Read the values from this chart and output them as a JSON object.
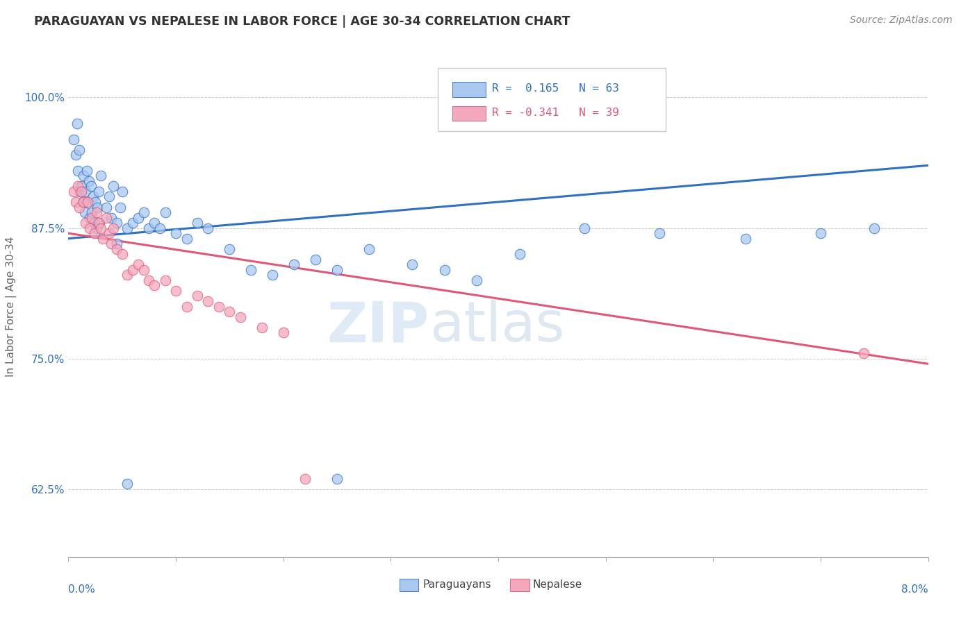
{
  "title": "PARAGUAYAN VS NEPALESE IN LABOR FORCE | AGE 30-34 CORRELATION CHART",
  "source_text": "Source: ZipAtlas.com",
  "ylabel": "In Labor Force | Age 30-34",
  "yticks": [
    62.5,
    75.0,
    87.5,
    100.0
  ],
  "ytick_labels": [
    "62.5%",
    "75.0%",
    "87.5%",
    "100.0%"
  ],
  "xlim": [
    0.0,
    8.0
  ],
  "ylim": [
    56.0,
    104.0
  ],
  "legend_r1": "R =  0.165",
  "legend_n1": "N = 63",
  "legend_r2": "R = -0.341",
  "legend_n2": "N = 39",
  "blue_color": "#a8c8f0",
  "pink_color": "#f4a8bc",
  "blue_line_color": "#3070c0",
  "pink_line_color": "#e05878",
  "watermark_zip": "ZIP",
  "watermark_atlas": "atlas",
  "par_x": [
    0.05,
    0.07,
    0.08,
    0.09,
    0.1,
    0.11,
    0.12,
    0.13,
    0.14,
    0.15,
    0.16,
    0.17,
    0.18,
    0.19,
    0.2,
    0.21,
    0.22,
    0.23,
    0.24,
    0.25,
    0.26,
    0.27,
    0.28,
    0.29,
    0.3,
    0.35,
    0.38,
    0.4,
    0.42,
    0.45,
    0.48,
    0.5,
    0.55,
    0.6,
    0.65,
    0.7,
    0.75,
    0.8,
    0.85,
    0.9,
    1.0,
    1.1,
    1.2,
    1.3,
    1.5,
    1.7,
    1.9,
    2.1,
    2.3,
    2.5,
    2.8,
    3.2,
    3.5,
    3.8,
    4.2,
    4.8,
    5.5,
    6.3,
    7.0,
    7.5,
    0.45,
    0.55,
    2.5
  ],
  "par_y": [
    96.0,
    94.5,
    97.5,
    93.0,
    95.0,
    91.0,
    91.5,
    90.0,
    92.5,
    89.0,
    91.0,
    93.0,
    90.0,
    92.0,
    88.5,
    91.5,
    89.0,
    90.5,
    88.0,
    90.0,
    87.5,
    89.5,
    91.0,
    88.0,
    92.5,
    89.5,
    90.5,
    88.5,
    91.5,
    88.0,
    89.5,
    91.0,
    87.5,
    88.0,
    88.5,
    89.0,
    87.5,
    88.0,
    87.5,
    89.0,
    87.0,
    86.5,
    88.0,
    87.5,
    85.5,
    83.5,
    83.0,
    84.0,
    84.5,
    83.5,
    85.5,
    84.0,
    83.5,
    82.5,
    85.0,
    87.5,
    87.0,
    86.5,
    87.0,
    87.5,
    86.0,
    63.0,
    63.5
  ],
  "nep_x": [
    0.05,
    0.07,
    0.09,
    0.1,
    0.12,
    0.14,
    0.16,
    0.18,
    0.2,
    0.22,
    0.24,
    0.26,
    0.28,
    0.3,
    0.32,
    0.35,
    0.38,
    0.4,
    0.42,
    0.45,
    0.5,
    0.55,
    0.6,
    0.65,
    0.7,
    0.75,
    0.8,
    0.9,
    1.0,
    1.1,
    1.2,
    1.3,
    1.4,
    1.5,
    1.6,
    1.8,
    2.0,
    2.2,
    7.4
  ],
  "nep_y": [
    91.0,
    90.0,
    91.5,
    89.5,
    91.0,
    90.0,
    88.0,
    90.0,
    87.5,
    88.5,
    87.0,
    89.0,
    88.0,
    87.5,
    86.5,
    88.5,
    87.0,
    86.0,
    87.5,
    85.5,
    85.0,
    83.0,
    83.5,
    84.0,
    83.5,
    82.5,
    82.0,
    82.5,
    81.5,
    80.0,
    81.0,
    80.5,
    80.0,
    79.5,
    79.0,
    78.0,
    77.5,
    63.5,
    75.5
  ],
  "blue_trendline": [
    86.5,
    93.5
  ],
  "pink_trendline": [
    87.0,
    74.5
  ]
}
